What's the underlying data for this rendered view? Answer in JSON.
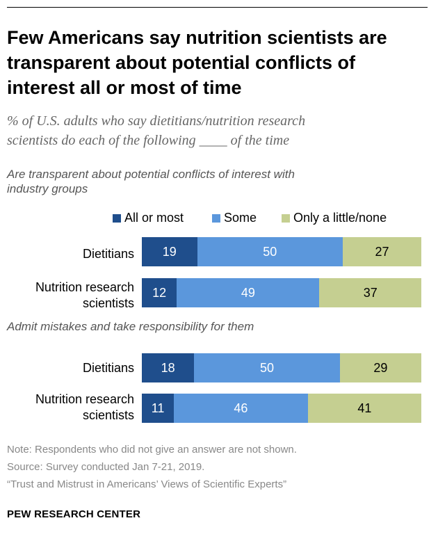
{
  "title": "Few Americans say nutrition scientists are transparent about potential conflicts of interest all or most of time",
  "subtitle_line1": "% of U.S. adults who say dietitians/nutrition research",
  "subtitle_line2": "scientists do each of the following ____ of the time",
  "colors": {
    "all_or_most": "#1f4e8c",
    "some": "#5b97dc",
    "only_little": "#c5cf91"
  },
  "chart_data": {
    "type": "bar",
    "orientation": "horizontal",
    "stacked": true,
    "legend": [
      "All or most",
      "Some",
      "Only a little/none"
    ],
    "legend_position": "top",
    "panels": [
      {
        "heading": "Are transparent about potential conflicts of interest with industry groups",
        "heading_line1": "Are transparent about potential conflicts of interest with",
        "heading_line2": "industry groups",
        "rows": [
          {
            "label_line1": "Dietitians",
            "label_line2": "",
            "values": [
              19,
              50,
              27
            ]
          },
          {
            "label_line1": "Nutrition research",
            "label_line2": "scientists",
            "values": [
              12,
              49,
              37
            ]
          }
        ]
      },
      {
        "heading": "Admit mistakes and take responsibility for them",
        "heading_line1": "Admit mistakes and take responsibility for them",
        "heading_line2": "",
        "rows": [
          {
            "label_line1": "Dietitians",
            "label_line2": "",
            "values": [
              18,
              50,
              29
            ]
          },
          {
            "label_line1": "Nutrition research",
            "label_line2": "scientists",
            "values": [
              11,
              46,
              41
            ]
          }
        ]
      }
    ]
  },
  "notes": {
    "note": "Note: Respondents who did not give an answer are not shown.",
    "source": "Source: Survey conducted Jan 7-21, 2019.",
    "report": "“Trust and Mistrust in Americans’ Views of Scientific Experts”"
  },
  "brand": "PEW RESEARCH CENTER"
}
